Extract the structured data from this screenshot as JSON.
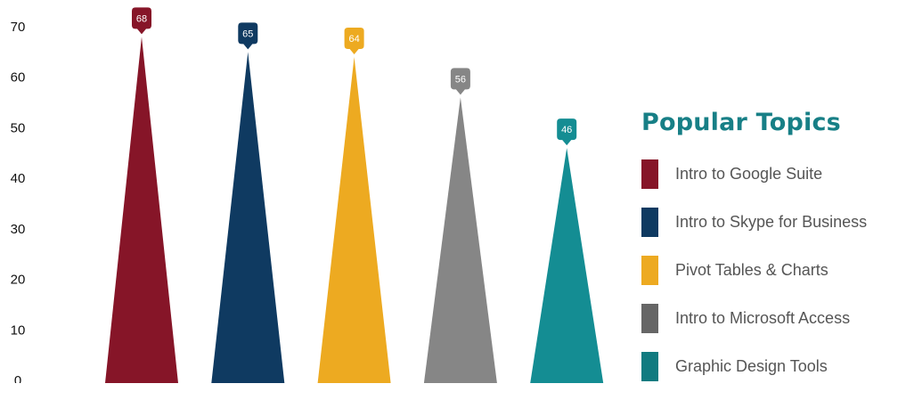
{
  "chart_data": {
    "type": "bar",
    "style": "triangle-spike",
    "categories": [
      "Intro to Google Suite",
      "Intro to Skype for Business",
      "Pivot Tables & Charts",
      "Intro to Microsoft Access",
      "Graphic Design Tools"
    ],
    "values": [
      68,
      65,
      64,
      56,
      46
    ],
    "colors": [
      "#861528",
      "#0f3a61",
      "#edaa21",
      "#868686",
      "#148d93"
    ],
    "ylim": [
      0,
      70
    ],
    "yticks": [
      0,
      10,
      20,
      30,
      40,
      50,
      60,
      70
    ],
    "grid": false,
    "data_labels": true,
    "legend_position": "right"
  },
  "legend": {
    "title": "Popular Topics",
    "items": [
      {
        "label": "Intro to Google Suite",
        "color": "#861528"
      },
      {
        "label": "Intro to Skype for Business",
        "color": "#0f3a61"
      },
      {
        "label": "Pivot Tables & Charts",
        "color": "#edaa21"
      },
      {
        "label": "Intro to Microsoft Access",
        "color": "#666666"
      },
      {
        "label": "Graphic Design Tools",
        "color": "#117b80"
      }
    ]
  }
}
